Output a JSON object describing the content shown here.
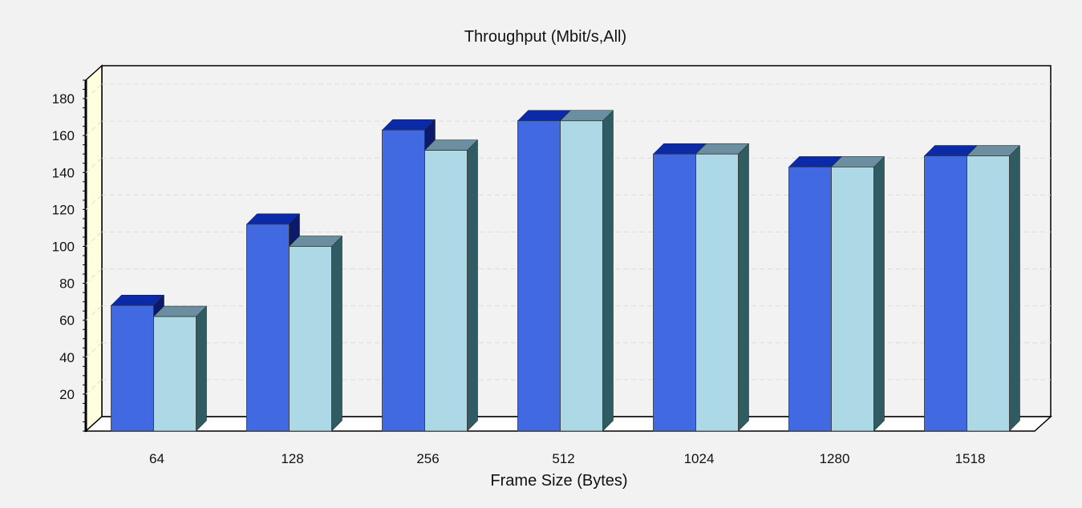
{
  "chart_data": {
    "type": "bar",
    "style": "3d-grouped",
    "title": "Throughput (Mbit/s,All)",
    "xlabel": "Frame Size (Bytes)",
    "ylabel": "",
    "categories": [
      "64",
      "128",
      "256",
      "512",
      "1024",
      "1280",
      "1518"
    ],
    "series": [
      {
        "values": [
          68,
          112,
          163,
          168,
          150,
          143,
          149
        ],
        "color": "#4169e1"
      },
      {
        "values": [
          62,
          100,
          152,
          168,
          150,
          143,
          149
        ],
        "color": "#add8e6"
      }
    ],
    "ylim": [
      0,
      190
    ],
    "yticks": [
      20,
      40,
      60,
      80,
      100,
      120,
      140,
      160,
      180
    ],
    "grid": true,
    "legend": "none"
  },
  "colors": {
    "background": "#f2f2f2",
    "plot_background": "#f2f2f2",
    "wall_left": "#ffffe0",
    "gridline": "#dcdcdc"
  }
}
